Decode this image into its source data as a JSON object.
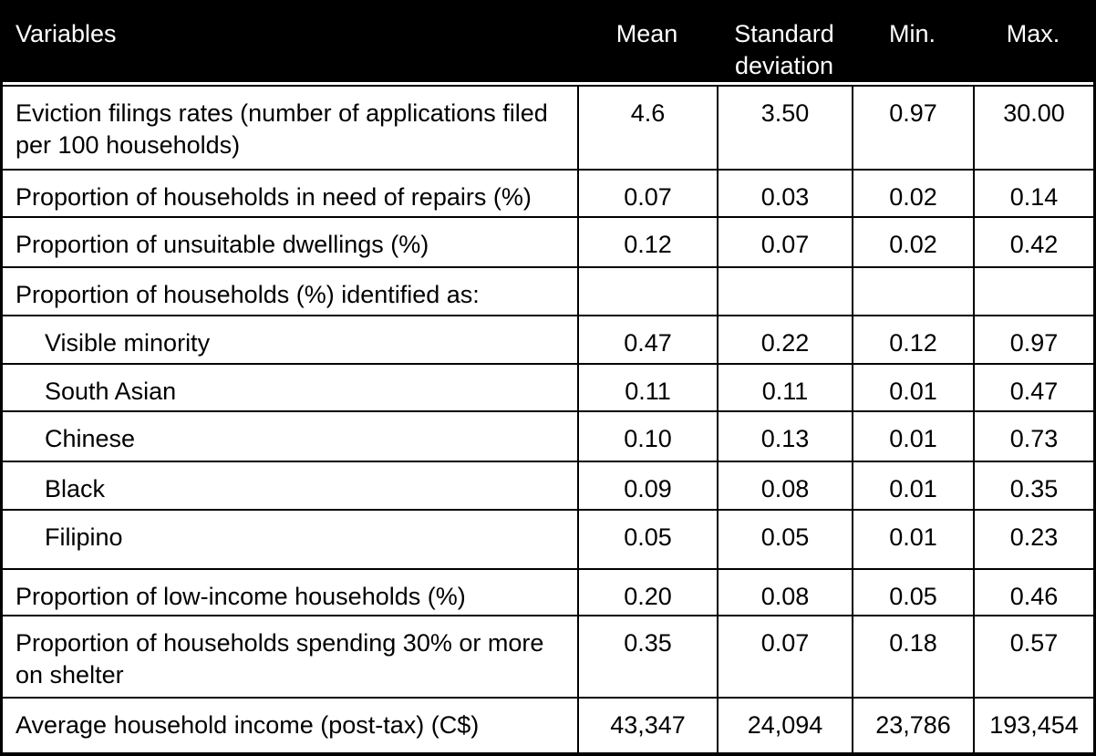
{
  "table": {
    "columns": [
      {
        "key": "variables",
        "label": "Variables"
      },
      {
        "key": "mean",
        "label": "Mean"
      },
      {
        "key": "sd",
        "label": "Standard deviation"
      },
      {
        "key": "min",
        "label": "Min."
      },
      {
        "key": "max",
        "label": "Max."
      }
    ],
    "rows": [
      {
        "label": "Eviction filings rates (number of applications filed per 100 households)",
        "indent": false,
        "values": [
          "4.6",
          "3.50",
          "0.97",
          "30.00"
        ]
      },
      {
        "label": "Proportion of households in need of repairs (%)",
        "indent": false,
        "values": [
          "0.07",
          "0.03",
          "0.02",
          "0.14"
        ]
      },
      {
        "label": "Proportion of unsuitable dwellings (%)",
        "indent": false,
        "values": [
          "0.12",
          "0.07",
          "0.02",
          "0.42"
        ]
      },
      {
        "label": "Proportion of households (%) identified as:",
        "indent": false,
        "values": [
          "",
          "",
          "",
          ""
        ]
      },
      {
        "label": "Visible minority",
        "indent": true,
        "values": [
          "0.47",
          "0.22",
          "0.12",
          "0.97"
        ]
      },
      {
        "label": "South Asian",
        "indent": true,
        "values": [
          "0.11",
          "0.11",
          "0.01",
          "0.47"
        ]
      },
      {
        "label": "Chinese",
        "indent": true,
        "values": [
          "0.10",
          "0.13",
          "0.01",
          "0.73"
        ]
      },
      {
        "label": "Black",
        "indent": true,
        "values": [
          "0.09",
          "0.08",
          "0.01",
          "0.35"
        ]
      },
      {
        "label": "Filipino",
        "indent": true,
        "values": [
          "0.05",
          "0.05",
          "0.01",
          "0.23"
        ]
      },
      {
        "label": "Proportion of low-income households (%)",
        "indent": false,
        "values": [
          "0.20",
          "0.08",
          "0.05",
          "0.46"
        ]
      },
      {
        "label": "Proportion of households spending 30% or more on shelter",
        "indent": false,
        "values": [
          "0.35",
          "0.07",
          "0.18",
          "0.57"
        ]
      },
      {
        "label": "Average household income (post-tax) (C$)",
        "indent": false,
        "values": [
          "43,347",
          "24,094",
          "23,786",
          "193,454"
        ]
      }
    ]
  },
  "colors": {
    "header_bg": "#000000",
    "header_text": "#ffffff",
    "border": "#000000",
    "body_text": "#000000"
  }
}
